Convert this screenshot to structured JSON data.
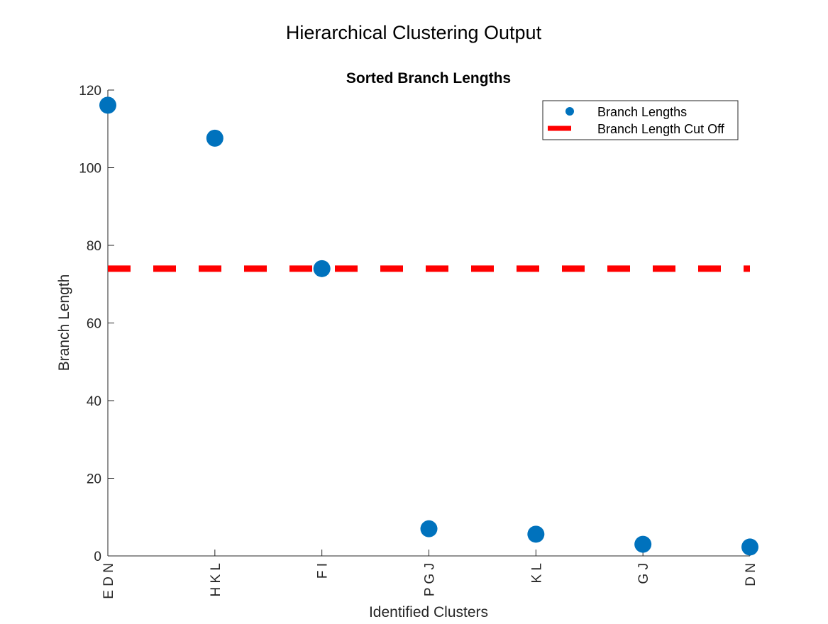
{
  "figure": {
    "title": "Hierarchical Clustering Output"
  },
  "chart_data": {
    "type": "scatter",
    "title": "Sorted Branch Lengths",
    "xlabel": "Identified Clusters",
    "ylabel": "Branch Length",
    "categories": [
      "E D N",
      "H K L",
      "F I",
      "P G J",
      "K L",
      "G J",
      "D N"
    ],
    "ylim": [
      0,
      120
    ],
    "yticks": [
      0,
      20,
      40,
      60,
      80,
      100,
      120
    ],
    "grid": false,
    "legend_position": "top-right",
    "series": [
      {
        "name": "Branch Lengths",
        "kind": "markers",
        "color": "#0072BD",
        "values": [
          116.1,
          107.6,
          74.0,
          7.0,
          5.6,
          3.0,
          2.3
        ]
      },
      {
        "name": "Branch Length Cut Off",
        "kind": "dashed-line",
        "color": "#FF0000",
        "value": 74.0
      }
    ]
  }
}
